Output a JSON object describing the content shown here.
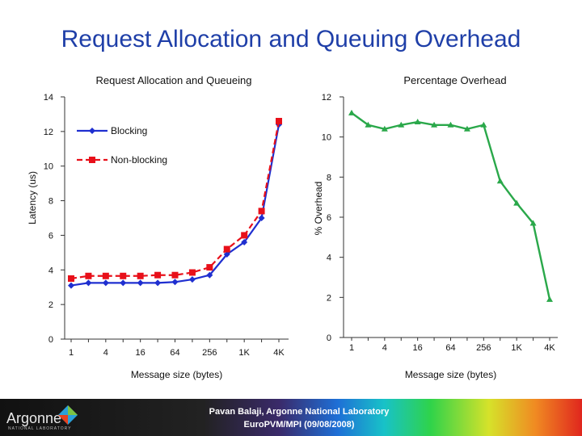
{
  "page_title": "Request Allocation and Queuing Overhead",
  "footer": {
    "logo_text": "Argonne",
    "logo_subtext": "NATIONAL LABORATORY",
    "credit_line1": "Pavan Balaji, Argonne National Laboratory",
    "credit_line2": "EuroPVM/MPI (09/08/2008)"
  },
  "chart_data": [
    {
      "type": "line",
      "title": "Request Allocation and Queueing",
      "xlabel": "Message size (bytes)",
      "ylabel": "Latency (us)",
      "ylim": [
        0,
        14
      ],
      "yticks": [
        0,
        2,
        4,
        6,
        8,
        10,
        12,
        14
      ],
      "categories": [
        "1",
        "2",
        "4",
        "8",
        "16",
        "32",
        "64",
        "128",
        "256",
        "512",
        "1K",
        "2K",
        "4K"
      ],
      "xtick_labels": [
        "1",
        "4",
        "16",
        "64",
        "256",
        "1K",
        "4K"
      ],
      "grid": false,
      "legend": "top-left",
      "series": [
        {
          "name": "Blocking",
          "color": "#1f2fd0",
          "values": [
            3.1,
            3.25,
            3.25,
            3.25,
            3.25,
            3.25,
            3.3,
            3.45,
            3.7,
            4.9,
            5.6,
            7.0,
            12.4
          ]
        },
        {
          "name": "Non-blocking",
          "color": "#e8101a",
          "values": [
            3.5,
            3.65,
            3.65,
            3.65,
            3.65,
            3.7,
            3.7,
            3.85,
            4.15,
            5.2,
            6.0,
            7.4,
            12.6
          ]
        }
      ]
    },
    {
      "type": "line",
      "title": "Percentage Overhead",
      "xlabel": "Message size (bytes)",
      "ylabel": "% Overhead",
      "ylim": [
        0,
        12
      ],
      "yticks": [
        0,
        2,
        4,
        6,
        8,
        10,
        12
      ],
      "categories": [
        "1",
        "2",
        "4",
        "8",
        "16",
        "32",
        "64",
        "128",
        "256",
        "512",
        "1K",
        "2K",
        "4K"
      ],
      "xtick_labels": [
        "1",
        "4",
        "16",
        "64",
        "256",
        "1K",
        "4K"
      ],
      "grid": false,
      "series": [
        {
          "color": "#2aa84a",
          "values": [
            11.2,
            10.6,
            10.4,
            10.6,
            10.75,
            10.6,
            10.6,
            10.4,
            10.6,
            7.8,
            6.7,
            5.7,
            1.9
          ]
        }
      ]
    }
  ]
}
